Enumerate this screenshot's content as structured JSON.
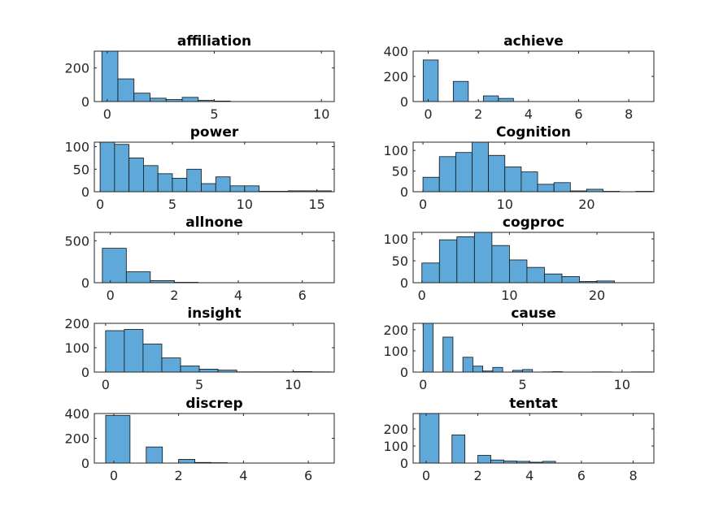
{
  "chart_data": [
    {
      "type": "bar",
      "title": "affiliation",
      "xlim": [
        -0.6,
        10.6
      ],
      "ylim": [
        0,
        300
      ],
      "xticks": [
        0,
        5,
        10
      ],
      "yticks": [
        0,
        200
      ],
      "bin_edges": [
        -0.25,
        0.5,
        1.25,
        2.0,
        2.75,
        3.5,
        4.25,
        5.0,
        5.75
      ],
      "values": [
        300,
        135,
        50,
        20,
        12,
        25,
        7,
        3
      ]
    },
    {
      "type": "bar",
      "title": "achieve",
      "xlim": [
        -0.6,
        9.0
      ],
      "ylim": [
        0,
        400
      ],
      "xticks": [
        0,
        2,
        4,
        6,
        8
      ],
      "yticks": [
        0,
        200,
        400
      ],
      "bin_edges": [
        -0.2,
        0.4,
        1.0,
        1.6,
        2.2,
        2.8,
        3.4
      ],
      "values": [
        330,
        0,
        160,
        0,
        45,
        25
      ]
    },
    {
      "type": "bar",
      "title": "power",
      "xlim": [
        -0.4,
        16.2
      ],
      "ylim": [
        0,
        110
      ],
      "xticks": [
        0,
        5,
        10,
        15
      ],
      "yticks": [
        0,
        50,
        100
      ],
      "bin_edges": [
        0.0,
        1.0,
        2.0,
        3.0,
        4.0,
        5.0,
        6.0,
        7.0,
        8.0,
        9.0,
        10.0,
        11.0,
        12.0,
        13.0,
        14.0,
        15.0,
        16.0
      ],
      "values": [
        110,
        105,
        75,
        58,
        40,
        30,
        50,
        18,
        33,
        13,
        13,
        1,
        1,
        2,
        2,
        2
      ]
    },
    {
      "type": "bar",
      "title": "Cognition",
      "xlim": [
        -1.2,
        28.2
      ],
      "ylim": [
        0,
        120
      ],
      "xticks": [
        0,
        10,
        20
      ],
      "yticks": [
        0,
        50,
        100
      ],
      "bin_edges": [
        0,
        2,
        4,
        6,
        8,
        10,
        12,
        14,
        16,
        18,
        20,
        22,
        24,
        26,
        28
      ],
      "values": [
        35,
        85,
        95,
        120,
        88,
        60,
        48,
        18,
        22,
        2,
        6,
        1,
        0,
        1
      ]
    },
    {
      "type": "bar",
      "title": "allnone",
      "xlim": [
        -0.5,
        7.0
      ],
      "ylim": [
        0,
        600
      ],
      "xticks": [
        0,
        2,
        4,
        6
      ],
      "yticks": [
        0,
        500
      ],
      "bin_edges": [
        -0.25,
        0.5,
        1.25,
        2.0,
        2.75,
        3.5
      ],
      "values": [
        410,
        130,
        25,
        5,
        1
      ]
    },
    {
      "type": "bar",
      "title": "cogproc",
      "xlim": [
        -1.0,
        26.5
      ],
      "ylim": [
        0,
        115
      ],
      "xticks": [
        0,
        10,
        20
      ],
      "yticks": [
        0,
        50,
        100
      ],
      "bin_edges": [
        0,
        2,
        4,
        6,
        8,
        10,
        12,
        14,
        16,
        18,
        20,
        22
      ],
      "values": [
        45,
        98,
        105,
        115,
        85,
        52,
        35,
        20,
        14,
        3,
        4
      ]
    },
    {
      "type": "bar",
      "title": "insight",
      "xlim": [
        -0.6,
        12.2
      ],
      "ylim": [
        0,
        200
      ],
      "xticks": [
        0,
        5,
        10
      ],
      "yticks": [
        0,
        100,
        200
      ],
      "bin_edges": [
        0.0,
        1.0,
        2.0,
        3.0,
        4.0,
        5.0,
        6.0,
        7.0,
        8.0,
        9.0,
        10.0,
        11.0,
        12.0
      ],
      "values": [
        170,
        175,
        115,
        58,
        25,
        12,
        8,
        1,
        1,
        1,
        2,
        1
      ]
    },
    {
      "type": "bar",
      "title": "cause",
      "xlim": [
        -0.5,
        11.6
      ],
      "ylim": [
        0,
        230
      ],
      "xticks": [
        0,
        5,
        10
      ],
      "yticks": [
        0,
        100,
        200
      ],
      "bin_edges": [
        0.0,
        0.5,
        1.0,
        1.5,
        2.0,
        2.5,
        3.0,
        3.5,
        4.0,
        4.5,
        5.0,
        5.5,
        6.0,
        6.5,
        7.0,
        7.5,
        8.0,
        8.5,
        9.0,
        9.5,
        10.0,
        10.5,
        11.0,
        11.5
      ],
      "values": [
        230,
        0,
        165,
        0,
        70,
        28,
        5,
        22,
        0,
        8,
        12,
        0,
        1,
        2,
        0,
        0,
        0,
        1,
        1,
        0,
        0,
        1,
        1
      ]
    },
    {
      "type": "bar",
      "title": "discrep",
      "xlim": [
        -0.6,
        6.8
      ],
      "ylim": [
        0,
        400
      ],
      "xticks": [
        0,
        2,
        4,
        6
      ],
      "yticks": [
        0,
        200,
        400
      ],
      "bin_edges": [
        -0.25,
        0.5,
        1.0,
        1.5,
        2.0,
        2.5,
        3.0,
        3.5
      ],
      "values": [
        385,
        0,
        130,
        0,
        30,
        5,
        3
      ]
    },
    {
      "type": "bar",
      "title": "tentat",
      "xlim": [
        -0.5,
        8.8
      ],
      "ylim": [
        0,
        290
      ],
      "xticks": [
        0,
        2,
        4,
        6,
        8
      ],
      "yticks": [
        0,
        100,
        200
      ],
      "bin_edges": [
        -0.25,
        0.5,
        1.0,
        1.5,
        2.0,
        2.5,
        3.0,
        3.5,
        4.0,
        4.5,
        5.0
      ],
      "values": [
        290,
        0,
        165,
        0,
        45,
        18,
        12,
        10,
        5,
        10
      ]
    }
  ]
}
